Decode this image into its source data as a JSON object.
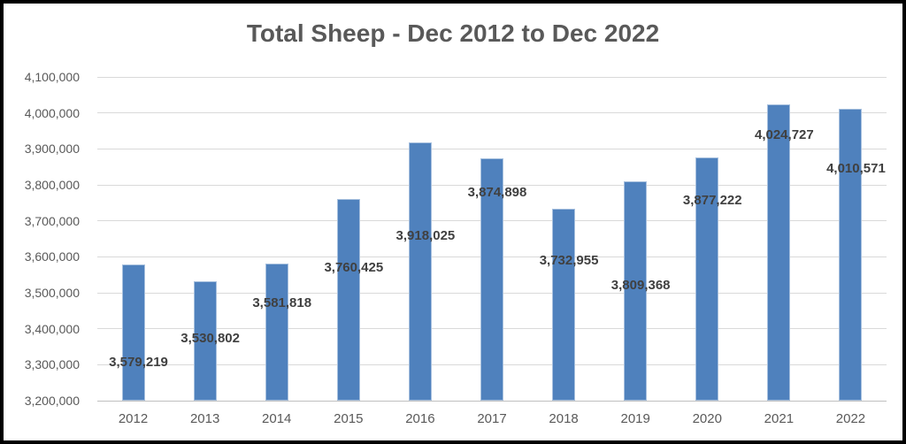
{
  "frame": {
    "background": "#ffffff",
    "border_color": "#000000"
  },
  "chart_data": {
    "type": "bar",
    "title": "Total Sheep - Dec 2012 to Dec 2022",
    "categories": [
      "2012",
      "2013",
      "2014",
      "2015",
      "2016",
      "2017",
      "2018",
      "2019",
      "2020",
      "2021",
      "2022"
    ],
    "values": [
      3579219,
      3530802,
      3581818,
      3760425,
      3918025,
      3874898,
      3732955,
      3809368,
      3877222,
      4024727,
      4010571
    ],
    "data_labels": [
      "3,579,219",
      "3,530,802",
      "3,581,818",
      "3,760,425",
      "3,918,025",
      "3,874,898",
      "3,732,955",
      "3,809,368",
      "3,877,222",
      "4,024,727",
      "4,010,571"
    ],
    "xlabel": "",
    "ylabel": "",
    "ylim": [
      3200000,
      4100000
    ],
    "ytick_interval": 100000,
    "ytick_labels": [
      "3,200,000",
      "3,300,000",
      "3,400,000",
      "3,500,000",
      "3,600,000",
      "3,700,000",
      "3,800,000",
      "3,900,000",
      "4,000,000",
      "4,100,000"
    ],
    "grid": "horizontal",
    "legend": "none",
    "colors": {
      "bar_fill": "#4f81bd",
      "bar_border": "#a7c0de",
      "gridline": "#d9d9d9",
      "axis_line": "#bfbfbf",
      "title_text": "#595959",
      "tick_text": "#595959",
      "data_label_text": "#404040"
    }
  }
}
